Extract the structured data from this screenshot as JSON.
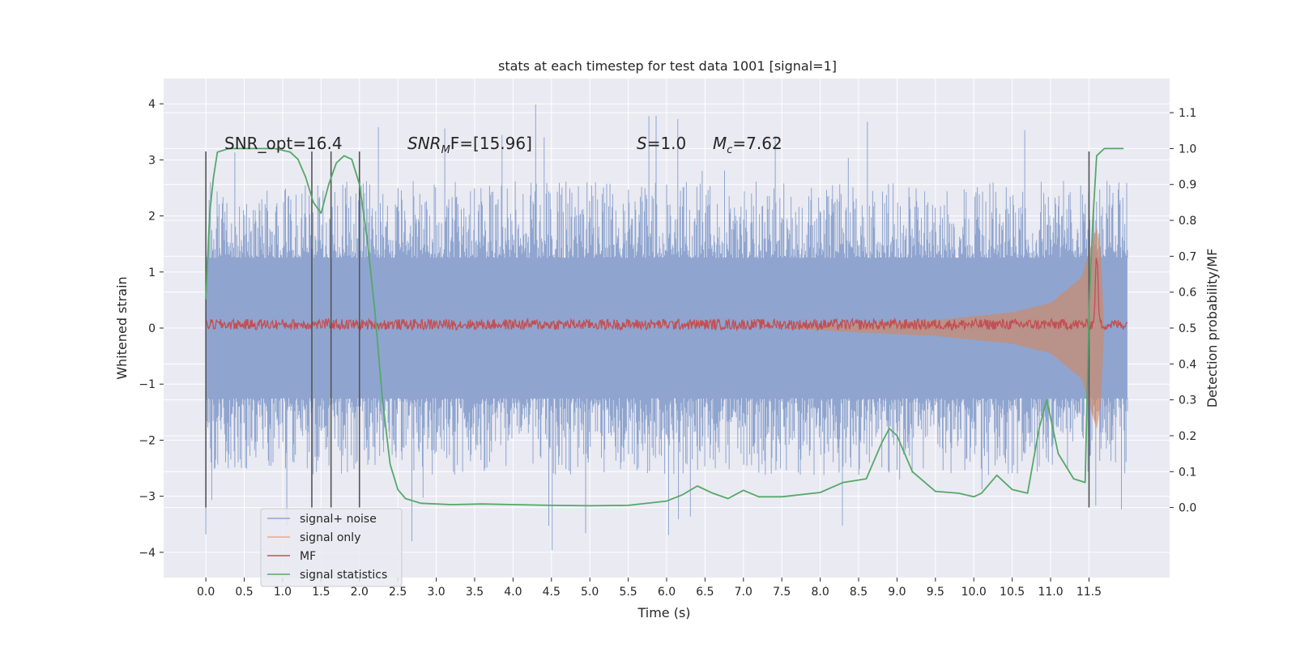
{
  "chart_data": {
    "type": "line",
    "title": "stats at each timestep for test data 1001 [signal=1]",
    "xlabel": "Time (s)",
    "ylabel": "Whitened strain",
    "ylabel_right": "Detection probability/MF",
    "xlim": [
      -0.55,
      12.55
    ],
    "ylim": [
      -4.45,
      4.45
    ],
    "ylim_right": [
      -0.195,
      1.195
    ],
    "x_ticks": [
      "0.0",
      "0.5",
      "1.0",
      "1.5",
      "2.0",
      "2.5",
      "3.0",
      "3.5",
      "4.0",
      "4.5",
      "5.0",
      "5.5",
      "6.0",
      "6.5",
      "7.0",
      "7.5",
      "8.0",
      "8.5",
      "9.0",
      "9.5",
      "10.0",
      "10.5",
      "11.0",
      "11.5"
    ],
    "y_ticks": [
      "4",
      "3",
      "2",
      "1",
      "0",
      "−1",
      "−2",
      "−3",
      "−4"
    ],
    "y_ticks_right": [
      "1.1",
      "1.0",
      "0.9",
      "0.8",
      "0.7",
      "0.6",
      "0.5",
      "0.4",
      "0.3",
      "0.2",
      "0.1",
      "0.0"
    ],
    "grid": true,
    "legend_position": "lower-left",
    "annotations": {
      "snr_opt": "SNR_opt=16.4",
      "snr_mf_main": "SNR",
      "snr_mf_sub": "M",
      "snr_mf_rest": "F=[15.96]",
      "s_main": "S",
      "s_rest": "=1.0",
      "mc_main": "M",
      "mc_sub": "c",
      "mc_rest": "=7.62"
    },
    "detection_markers_x": [
      0.0,
      1.38,
      1.63,
      2.0,
      11.5
    ],
    "series": [
      {
        "name": "signal+ noise",
        "color": "#8fa5cf",
        "x_range": [
          0.0,
          12.0
        ],
        "envelope_core": 1.25,
        "envelope_peak_typical": 2.5,
        "envelope_peak_max": 4.0
      },
      {
        "name": "signal only",
        "color": "#dd8452",
        "envelope": [
          [
            7.5,
            0.0
          ],
          [
            8.5,
            0.08
          ],
          [
            9.5,
            0.14
          ],
          [
            10.5,
            0.28
          ],
          [
            11.0,
            0.45
          ],
          [
            11.4,
            0.9
          ],
          [
            11.6,
            1.8
          ],
          [
            11.65,
            1.4
          ],
          [
            11.7,
            0.0
          ]
        ]
      },
      {
        "name": "MF",
        "color": "#c44e52",
        "x_range": [
          0.0,
          12.0
        ],
        "baseline_right": 0.51,
        "noise_right": 0.015,
        "peak_x": 11.6,
        "peak_right": 0.7
      },
      {
        "name": "signal statistics",
        "color": "#55a868",
        "x": [
          0.0,
          0.05,
          0.1,
          0.15,
          0.3,
          0.6,
          0.9,
          1.1,
          1.2,
          1.3,
          1.4,
          1.5,
          1.6,
          1.7,
          1.8,
          1.9,
          2.0,
          2.1,
          2.2,
          2.3,
          2.4,
          2.5,
          2.6,
          2.8,
          3.2,
          3.6,
          4.0,
          4.5,
          5.0,
          5.5,
          6.0,
          6.2,
          6.4,
          6.6,
          6.8,
          7.0,
          7.2,
          7.5,
          8.0,
          8.3,
          8.6,
          8.8,
          8.9,
          9.0,
          9.2,
          9.5,
          9.8,
          10.0,
          10.1,
          10.3,
          10.5,
          10.7,
          10.85,
          10.95,
          11.1,
          11.3,
          11.45,
          11.5,
          11.55,
          11.6,
          11.7,
          11.8,
          11.9,
          11.95
        ],
        "y": [
          0.58,
          0.82,
          0.92,
          0.99,
          1.0,
          1.0,
          1.0,
          0.99,
          0.97,
          0.92,
          0.85,
          0.82,
          0.9,
          0.96,
          0.98,
          0.97,
          0.9,
          0.75,
          0.55,
          0.3,
          0.12,
          0.05,
          0.025,
          0.012,
          0.008,
          0.01,
          0.008,
          0.006,
          0.005,
          0.006,
          0.018,
          0.035,
          0.06,
          0.04,
          0.025,
          0.048,
          0.03,
          0.03,
          0.042,
          0.07,
          0.08,
          0.18,
          0.22,
          0.2,
          0.1,
          0.045,
          0.04,
          0.03,
          0.04,
          0.09,
          0.05,
          0.04,
          0.22,
          0.3,
          0.15,
          0.08,
          0.07,
          0.55,
          0.8,
          0.98,
          1.0,
          1.0,
          1.0,
          1.0
        ]
      }
    ]
  }
}
